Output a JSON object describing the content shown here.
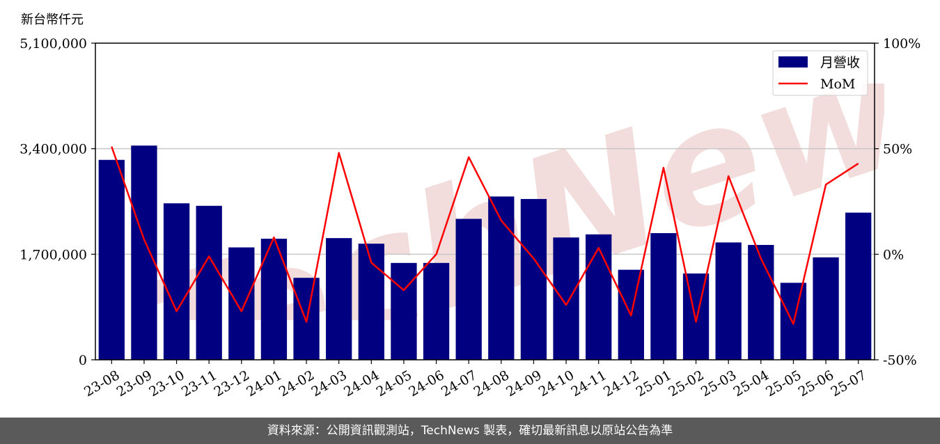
{
  "unit_label": "新台幣仟元",
  "footer_text": "資料來源：公開資訊觀測站，TechNews 製表，確切最新訊息以原站公告為準",
  "watermark_text": "TechNews",
  "colors": {
    "bar": "#000080",
    "line": "#ff0000",
    "grid": "#c8c8c8",
    "watermark": "#f3dcdc",
    "footer_bg": "#5a5a5a"
  },
  "chart_data": {
    "type": "bar+line",
    "categories": [
      "23-08",
      "23-09",
      "23-10",
      "23-11",
      "23-12",
      "24-01",
      "24-02",
      "24-03",
      "24-04",
      "24-05",
      "24-06",
      "24-07",
      "24-08",
      "24-09",
      "24-10",
      "24-11",
      "24-12",
      "25-01",
      "25-02",
      "25-03",
      "25-04",
      "25-05",
      "25-06",
      "25-07"
    ],
    "series": [
      {
        "name": "月營收",
        "axis": "left",
        "kind": "bar",
        "values": [
          3220000,
          3450000,
          2520000,
          2480000,
          1810000,
          1950000,
          1320000,
          1960000,
          1870000,
          1560000,
          1560000,
          2270000,
          2630000,
          2590000,
          1970000,
          2020000,
          1450000,
          2040000,
          1390000,
          1890000,
          1850000,
          1240000,
          1650000,
          2370000
        ]
      },
      {
        "name": "MoM",
        "axis": "right",
        "kind": "line",
        "values": [
          51,
          7,
          -27,
          -1,
          -27,
          8,
          -32,
          48,
          -4,
          -17,
          0,
          46,
          16,
          -2,
          -24,
          3,
          -29,
          41,
          -32,
          37,
          -2,
          -33,
          33,
          43
        ]
      }
    ],
    "y_left": {
      "min": 0,
      "max": 5100000,
      "ticks": [
        0,
        1700000,
        3400000,
        5100000
      ],
      "tick_labels": [
        "0",
        "1,700,000",
        "3,400,000",
        "5,100,000"
      ]
    },
    "y_right": {
      "min": -50,
      "max": 100,
      "ticks": [
        -50,
        0,
        50,
        100
      ],
      "tick_labels": [
        "-50%",
        "0%",
        "50%",
        "100%"
      ]
    },
    "grid": true,
    "legend_position": "top-right"
  }
}
